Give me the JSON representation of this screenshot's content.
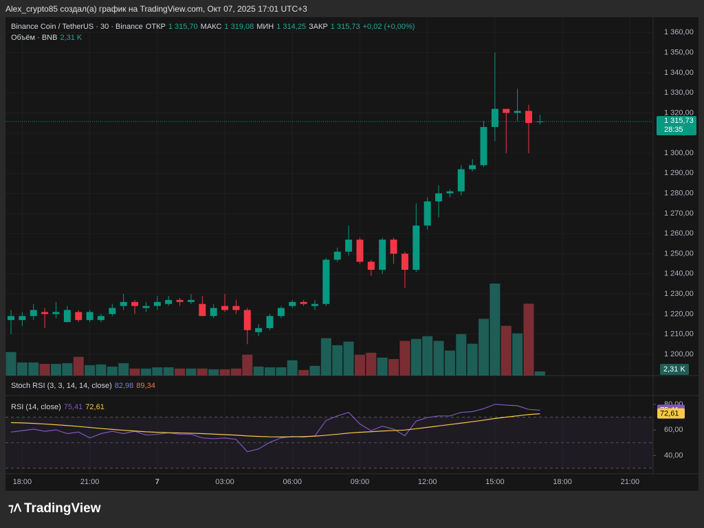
{
  "header": {
    "title": "Alex_crypto85 создал(а) график на TradingView.com, Окт 07, 2025 17:01 UTC+3"
  },
  "chart_data": {
    "type": "candlestick",
    "symbol": "Binance Coin / TetherUS · 30 · Binance",
    "ohlc_legend": [
      {
        "label": "ОТКР",
        "value": "1 315,70"
      },
      {
        "label": "МАКС",
        "value": "1 319,08"
      },
      {
        "label": "МИН",
        "value": "1 314,25"
      },
      {
        "label": "ЗАКР",
        "value": "1 315,73"
      }
    ],
    "change": "+0,02 (+0,00%)",
    "volume_legend": {
      "label": "Объём · BNB",
      "value": "2,31 K"
    },
    "price_label": "1 315,73",
    "countdown": "28:35",
    "categories": [
      null,
      "18:00",
      null,
      null,
      null,
      null,
      null,
      "21:00",
      null,
      null,
      null,
      null,
      null,
      "7",
      null,
      null,
      null,
      null,
      null,
      "03:00",
      null,
      null,
      null,
      null,
      null,
      "06:00",
      null,
      null,
      null,
      null,
      null,
      "09:00",
      null,
      null,
      null,
      null,
      null,
      "12:00",
      null,
      null,
      null,
      null,
      null,
      "15:00",
      null,
      null,
      null,
      null,
      null,
      "18:00",
      null,
      null,
      null,
      null,
      null,
      "21:00",
      null,
      null
    ],
    "up_color": "#089981",
    "down_color": "#f23645",
    "open": [
      1217,
      1217,
      1219,
      1221,
      1220,
      1216,
      1221,
      1217,
      1217,
      1220,
      1224,
      1226,
      1223,
      1224,
      1225,
      1227,
      1226,
      1225,
      1219,
      1224,
      1224,
      1222,
      1211,
      1213,
      1219,
      1224,
      1226,
      1224,
      1225,
      1247,
      1251,
      1257,
      1246,
      1242,
      1257,
      1250,
      1242,
      1264,
      1276,
      1280,
      1281,
      1292,
      1294,
      1313,
      1322,
      1320,
      1321,
      1315.7,
      null,
      null,
      null,
      null,
      null,
      null,
      null,
      null,
      null,
      null
    ],
    "high": [
      1222,
      1221,
      1225,
      1223,
      1226,
      1224,
      1222,
      1222,
      1220,
      1225,
      1230,
      1227,
      1226,
      1229,
      1229,
      1228,
      1230,
      1229,
      1225,
      1230,
      1227,
      1223,
      1215,
      1220,
      1224,
      1227,
      1227,
      1227,
      1248,
      1253,
      1264,
      1258,
      1247,
      1258,
      1258,
      1251,
      1275,
      1278,
      1284,
      1282,
      1294,
      1297,
      1316,
      1350,
      1321,
      1332,
      1324,
      1319.08,
      null,
      null,
      null,
      null,
      null,
      null,
      null,
      null,
      null,
      null
    ],
    "low": [
      1210,
      1214,
      1217,
      1213,
      1218,
      1216,
      1216,
      1216,
      1216,
      1219,
      1222,
      1220,
      1221,
      1222,
      1224,
      1224,
      1225,
      1219,
      1218,
      1221,
      1220,
      1205,
      1209,
      1212,
      1218,
      1223,
      1224,
      1222,
      1224,
      1246,
      1249,
      1245,
      1239,
      1240,
      1245,
      1233,
      1241,
      1262,
      1268,
      1278,
      1279,
      1291,
      1293,
      1306,
      1300,
      1316,
      1300,
      1314.25,
      null,
      null,
      null,
      null,
      null,
      null,
      null,
      null,
      null,
      null
    ],
    "close": [
      1219,
      1219,
      1222,
      1220,
      1221,
      1222,
      1217,
      1221,
      1219,
      1223,
      1226,
      1224,
      1224,
      1226,
      1227,
      1226,
      1227,
      1219,
      1223,
      1222,
      1222,
      1212,
      1213,
      1219,
      1223,
      1226,
      1225,
      1225,
      1247,
      1251,
      1257,
      1246,
      1242,
      1257,
      1250,
      1242,
      1264,
      1276,
      1280,
      1281,
      1292,
      1294,
      1313,
      1322,
      1320,
      1321,
      1315,
      1315.73,
      null,
      null,
      null,
      null,
      null,
      null,
      null,
      null,
      null,
      null
    ],
    "volume": [
      13.1,
      7.3,
      7.3,
      6.5,
      6.5,
      6.9,
      10.4,
      5.8,
      6.2,
      5.0,
      6.9,
      3.9,
      3.9,
      4.6,
      4.6,
      3.9,
      3.9,
      3.9,
      3.5,
      3.5,
      3.9,
      11.6,
      5.0,
      4.6,
      4.6,
      8.5,
      3.1,
      5.4,
      20.8,
      16.9,
      18.9,
      11.6,
      12.7,
      10.0,
      9.2,
      19.3,
      20.4,
      21.9,
      19.3,
      13.9,
      23.1,
      17.7,
      31.6,
      51.2,
      27.7,
      23.5,
      40.0,
      2.31,
      null,
      null,
      null,
      null,
      null,
      null,
      null,
      null,
      null,
      null
    ],
    "ylim": [
      1189.4,
      1367.6
    ],
    "yticks": [
      {
        "value": 1200,
        "label": "1 200,00"
      },
      {
        "value": 1210,
        "label": "1 210,00"
      },
      {
        "value": 1220,
        "label": "1 220,00"
      },
      {
        "value": 1230,
        "label": "1 230,00"
      },
      {
        "value": 1240,
        "label": "1 240,00"
      },
      {
        "value": 1250,
        "label": "1 250,00"
      },
      {
        "value": 1260,
        "label": "1 260,00"
      },
      {
        "value": 1270,
        "label": "1 270,00"
      },
      {
        "value": 1280,
        "label": "1 280,00"
      },
      {
        "value": 1290,
        "label": "1 290,00"
      },
      {
        "value": 1300,
        "label": "1 300,00"
      },
      {
        "value": 1310,
        "label": "1 310,00"
      },
      {
        "value": 1320,
        "label": "1 320,00"
      },
      {
        "value": 1330,
        "label": "1 330,00"
      },
      {
        "value": 1340,
        "label": "1 340,00"
      },
      {
        "value": 1350,
        "label": "1 350,00"
      },
      {
        "value": 1360,
        "label": "1 360,00"
      }
    ],
    "stoch_legend": {
      "label": "Stoch RSI (3, 3, 14, 14, close)",
      "k": "82,98",
      "d": "89,34"
    },
    "rsi": {
      "label": "RSI (14, close)",
      "value_label": "75,41",
      "ma_label": "72,61",
      "color": "#7e57c2",
      "ma_color": "#f7c948",
      "values": [
        58.3,
        59.4,
        60.6,
        58.9,
        60,
        57.1,
        58.3,
        53.7,
        57.1,
        58.9,
        57.1,
        58.9,
        56,
        56.6,
        57.7,
        56.6,
        56.6,
        53.7,
        53.1,
        53.7,
        52.6,
        42.9,
        45.1,
        50.3,
        53.7,
        54.9,
        54.3,
        55.4,
        67.4,
        70.9,
        73.7,
        64.6,
        59.4,
        62.9,
        60.6,
        55.4,
        66.9,
        69.7,
        70.9,
        70.9,
        73.7,
        74.3,
        76.6,
        80,
        79.4,
        78.9,
        76,
        75.41,
        null,
        null,
        null,
        null,
        null,
        null,
        null,
        null,
        null,
        null
      ],
      "ma": [
        65.7,
        65.5,
        65.1,
        64.6,
        64.0,
        63.4,
        62.7,
        61.9,
        61.1,
        60.4,
        59.7,
        59.1,
        58.5,
        58.1,
        57.8,
        57.6,
        57.4,
        57.1,
        56.7,
        56.3,
        55.9,
        55.3,
        54.9,
        54.6,
        54.5,
        54.6,
        54.8,
        55.1,
        55.8,
        56.6,
        57.5,
        58.1,
        58.6,
        59.1,
        59.5,
        59.9,
        60.9,
        62.0,
        63.1,
        64.2,
        65.3,
        66.4,
        67.6,
        68.9,
        70.0,
        71.0,
        72.0,
        72.61,
        null,
        null,
        null,
        null,
        null,
        null,
        null,
        null,
        null,
        null
      ],
      "ylim": [
        25.7,
        86.9
      ],
      "yticks": [
        {
          "value": 40,
          "label": "40,00"
        },
        {
          "value": 60,
          "label": "60,00"
        },
        {
          "value": 80,
          "label": "80,00"
        }
      ],
      "bands": [
        30,
        50,
        70
      ]
    }
  },
  "footer": {
    "logo": "TradingView"
  }
}
